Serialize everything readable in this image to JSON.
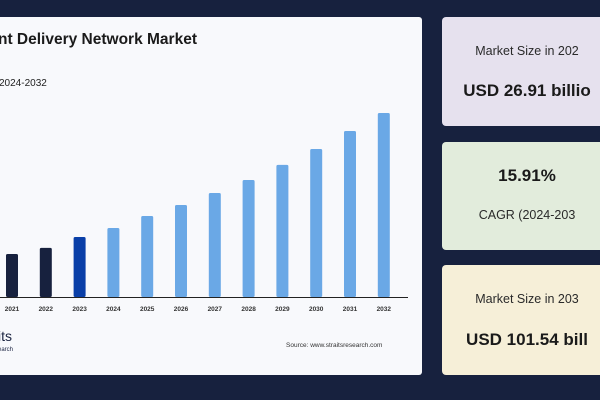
{
  "chart_data": {
    "type": "bar",
    "title": "nt Delivery Network Market",
    "subtitle": "2024-2032",
    "categories": [
      "2021",
      "2022",
      "2023",
      "2024",
      "2025",
      "2026",
      "2027",
      "2028",
      "2029",
      "2030",
      "2031",
      "2032"
    ],
    "values": [
      23.7,
      27.1,
      33.1,
      38.1,
      44.7,
      50.8,
      57.4,
      64.6,
      72.9,
      81.7,
      91.6,
      101.54
    ],
    "bar_colors": [
      "#17213e",
      "#17213e",
      "#0a3fa8",
      "#6aa8e6",
      "#6aa8e6",
      "#6aa8e6",
      "#6aa8e6",
      "#6aa8e6",
      "#6aa8e6",
      "#6aa8e6",
      "#6aa8e6",
      "#6aa8e6"
    ],
    "ylim": [
      0,
      101.54
    ],
    "grid": false,
    "xlabel": "",
    "ylabel": ""
  },
  "footer": {
    "logo_text": "its",
    "logo_sub": "earch",
    "source": "Source: www.straitsresearch.com"
  },
  "cards": [
    {
      "label": "Market Size in 202",
      "value": "USD 26.91 billio",
      "color": "#e6e1ee"
    },
    {
      "value": "15.91%",
      "label": "CAGR (2024-203",
      "color": "#e2ecdc"
    },
    {
      "label": "Market Size in 203",
      "value": "USD 101.54 bill",
      "color": "#f6efd8"
    }
  ]
}
